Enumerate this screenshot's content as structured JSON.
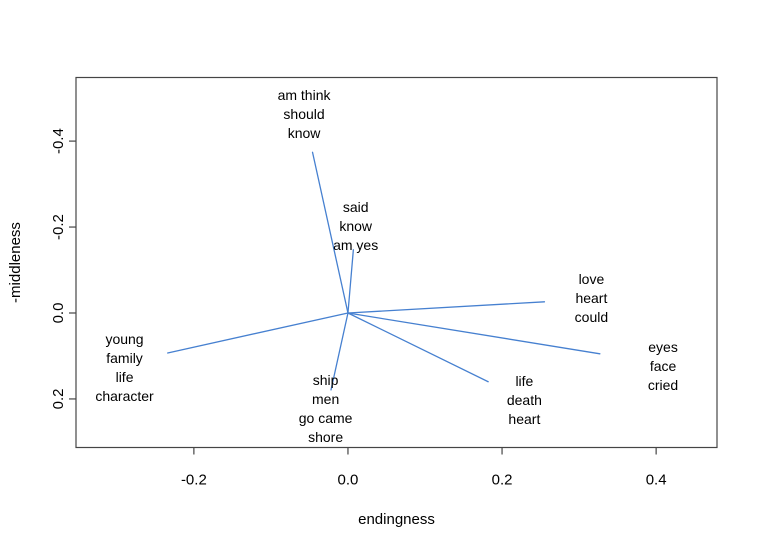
{
  "figure": {
    "background": "#ffffff",
    "frame_color": "#454545",
    "text_color": "#000000"
  },
  "chart_data": {
    "type": "scatter",
    "variant": "vectors-from-origin",
    "title": "",
    "xlabel": "endingness",
    "ylabel": "-middleness",
    "xlim": [
      -0.353,
      0.479
    ],
    "ylim": [
      -0.548,
      0.313
    ],
    "y_axis_inverted": true,
    "x_ticks": [
      -0.2,
      0.0,
      0.2,
      0.4
    ],
    "y_ticks": [
      -0.4,
      -0.2,
      0.0,
      0.2
    ],
    "grid": false,
    "legend": "none",
    "vector_color": "#4680d0",
    "origin": {
      "x": 0.0,
      "y": 0.0
    },
    "points": [
      {
        "label": "am think should know",
        "label_lines": [
          "am think",
          "should",
          "know"
        ],
        "x": -0.046,
        "y": -0.374,
        "label_cx": -0.057,
        "label_cy": -0.463
      },
      {
        "label": "said know am yes",
        "label_lines": [
          "said",
          "know",
          "am yes"
        ],
        "x": 0.007,
        "y": -0.147,
        "label_cx": 0.01,
        "label_cy": -0.202
      },
      {
        "label": "love heart could",
        "label_lines": [
          "love",
          "heart",
          "could"
        ],
        "x": 0.255,
        "y": -0.026,
        "label_cx": 0.316,
        "label_cy": -0.035
      },
      {
        "label": "eyes face cried",
        "label_lines": [
          "eyes",
          "face",
          "cried"
        ],
        "x": 0.327,
        "y": 0.095,
        "label_cx": 0.409,
        "label_cy": 0.123
      },
      {
        "label": "life death heart",
        "label_lines": [
          "life",
          "death",
          "heart"
        ],
        "x": 0.182,
        "y": 0.16,
        "label_cx": 0.229,
        "label_cy": 0.202
      },
      {
        "label": "ship men go came shore",
        "label_lines": [
          "ship",
          "men",
          "go came",
          "shore"
        ],
        "x": -0.022,
        "y": 0.179,
        "label_cx": -0.029,
        "label_cy": 0.222
      },
      {
        "label": "young family life character",
        "label_lines": [
          "young",
          "family",
          "life",
          "character"
        ],
        "x": -0.234,
        "y": 0.093,
        "label_cx": -0.29,
        "label_cy": 0.127
      }
    ]
  }
}
